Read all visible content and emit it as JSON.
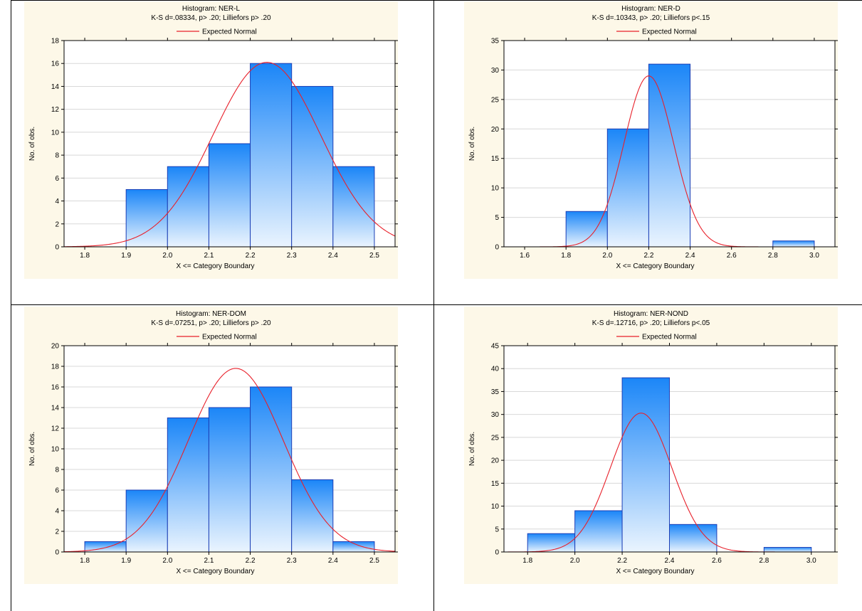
{
  "legend_label": "Expected Normal",
  "xlabel": "X <= Category Boundary",
  "ylabel": "No. of obs.",
  "colors": {
    "background": "#fdf8e8",
    "bar_top": "#1b86f8",
    "bar_bottom": "#eaf4fe",
    "bar_edge": "#1c3fb5",
    "curve": "#e8202a",
    "gridline": "#d8d8d8"
  },
  "chart_data": [
    {
      "type": "bar",
      "title": "Histogram: NER-L",
      "subtitle": "K-S d=.08334, p> .20; Lilliefors p> .20",
      "xlim": [
        1.75,
        2.55
      ],
      "ylim": [
        0,
        18
      ],
      "xticks": [
        "1.8",
        "1.9",
        "2.0",
        "2.1",
        "2.2",
        "2.3",
        "2.4",
        "2.5"
      ],
      "yticks": [
        "0",
        "2",
        "4",
        "6",
        "8",
        "10",
        "12",
        "14",
        "16",
        "18"
      ],
      "bins": [
        [
          1.8,
          1.9
        ],
        [
          1.9,
          2.0
        ],
        [
          2.0,
          2.1
        ],
        [
          2.1,
          2.2
        ],
        [
          2.2,
          2.3
        ],
        [
          2.3,
          2.4
        ],
        [
          2.4,
          2.5
        ]
      ],
      "values": [
        0,
        5,
        7,
        9,
        16,
        14,
        7
      ],
      "normal_curve": {
        "mean": 2.24,
        "peak": 16.1,
        "sd": 0.13
      }
    },
    {
      "type": "bar",
      "title": "Histogram: NER-D",
      "subtitle": "K-S d=.10343, p> .20; Lilliefors p<.15",
      "xlim": [
        1.5,
        3.1
      ],
      "ylim": [
        0,
        35
      ],
      "xticks": [
        "1.6",
        "1.8",
        "2.0",
        "2.2",
        "2.4",
        "2.6",
        "2.8",
        "3.0"
      ],
      "yticks": [
        "0",
        "5",
        "10",
        "15",
        "20",
        "25",
        "30",
        "35"
      ],
      "bins": [
        [
          1.6,
          1.8
        ],
        [
          1.8,
          2.0
        ],
        [
          2.0,
          2.2
        ],
        [
          2.2,
          2.4
        ],
        [
          2.4,
          2.6
        ],
        [
          2.6,
          2.8
        ],
        [
          2.8,
          3.0
        ]
      ],
      "values": [
        0,
        6,
        20,
        31,
        0,
        0,
        1
      ],
      "normal_curve": {
        "mean": 2.2,
        "peak": 29,
        "sd": 0.12
      }
    },
    {
      "type": "bar",
      "title": "Histogram: NER-DOM",
      "subtitle": "K-S d=.07251, p> .20; Lilliefors p> .20",
      "xlim": [
        1.75,
        2.55
      ],
      "ylim": [
        0,
        20
      ],
      "xticks": [
        "1.8",
        "1.9",
        "2.0",
        "2.1",
        "2.2",
        "2.3",
        "2.4",
        "2.5"
      ],
      "yticks": [
        "0",
        "2",
        "4",
        "6",
        "8",
        "10",
        "12",
        "14",
        "16",
        "18",
        "20"
      ],
      "bins": [
        [
          1.8,
          1.9
        ],
        [
          1.9,
          2.0
        ],
        [
          2.0,
          2.1
        ],
        [
          2.1,
          2.2
        ],
        [
          2.2,
          2.3
        ],
        [
          2.3,
          2.4
        ],
        [
          2.4,
          2.5
        ]
      ],
      "values": [
        1,
        6,
        13,
        14,
        16,
        7,
        1
      ],
      "normal_curve": {
        "mean": 2.165,
        "peak": 17.8,
        "sd": 0.115
      }
    },
    {
      "type": "bar",
      "title": "Histogram: NER-NOND",
      "subtitle": "K-S d=.12716, p> .20; Lilliefors p<.05",
      "xlim": [
        1.7,
        3.1
      ],
      "ylim": [
        0,
        45
      ],
      "xticks": [
        "1.8",
        "2.0",
        "2.2",
        "2.4",
        "2.6",
        "2.8",
        "3.0"
      ],
      "yticks": [
        "0",
        "5",
        "10",
        "15",
        "20",
        "25",
        "30",
        "35",
        "40",
        "45"
      ],
      "bins": [
        [
          1.8,
          2.0
        ],
        [
          2.0,
          2.2
        ],
        [
          2.2,
          2.4
        ],
        [
          2.4,
          2.6
        ],
        [
          2.6,
          2.8
        ],
        [
          2.8,
          3.0
        ]
      ],
      "values": [
        4,
        9,
        38,
        6,
        0,
        1
      ],
      "normal_curve": {
        "mean": 2.28,
        "peak": 30.3,
        "sd": 0.13
      }
    }
  ]
}
